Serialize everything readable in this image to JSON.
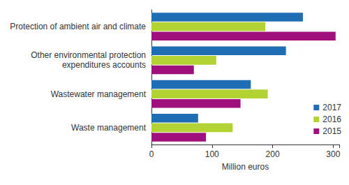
{
  "chart_data": {
    "type": "bar",
    "orientation": "horizontal",
    "x_label": "Million euros",
    "categories": [
      "Protection of ambient air and climate",
      "Other environmental protection\nexpenditures accounts",
      "Wastewater management",
      "Waste management"
    ],
    "series": [
      {
        "name": "2017",
        "color": "#1f6db3",
        "values": [
          250,
          222,
          164,
          77
        ]
      },
      {
        "name": "2016",
        "color": "#b3d334",
        "values": [
          188,
          107,
          192,
          134
        ]
      },
      {
        "name": "2015",
        "color": "#a0107d",
        "values": [
          304,
          70,
          147,
          90
        ]
      }
    ],
    "xlim": [
      0,
      310
    ],
    "xticks": [
      0,
      100,
      200,
      300
    ],
    "grid": false,
    "legend": "lower right"
  }
}
